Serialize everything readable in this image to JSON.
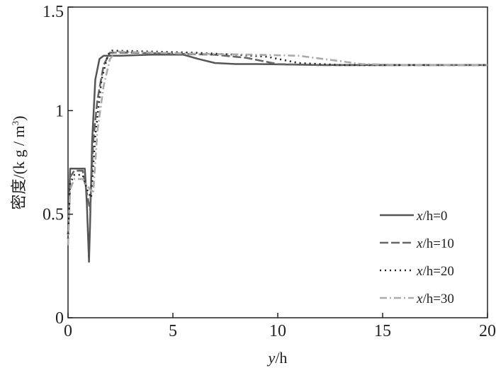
{
  "chart_data": {
    "type": "line",
    "title": "",
    "xlabel": "y/h",
    "ylabel": "密度/(kg/m³)",
    "xlim": [
      0,
      20
    ],
    "ylim": [
      0,
      1.5
    ],
    "xticks": [
      0,
      5,
      10,
      15,
      20
    ],
    "xtick_labels": [
      "0",
      "5",
      "10",
      "15",
      "20"
    ],
    "yticks": [
      0,
      0.5,
      1,
      1.5
    ],
    "ytick_labels": [
      "0",
      "0.5",
      "1",
      "1.5"
    ],
    "grid": false,
    "legend_position": "bottom-right",
    "series": [
      {
        "name": "x/h=0",
        "color": "#555555",
        "dash": "solid",
        "x": [
          0,
          0.1,
          0.3,
          0.8,
          0.9,
          1.0,
          1.05,
          1.15,
          1.3,
          1.5,
          1.7,
          2.5,
          4.0,
          5.5,
          6.2,
          7.0,
          8.0,
          9.0,
          12.0,
          15.0,
          20.0
        ],
        "y": [
          0.4,
          0.72,
          0.72,
          0.72,
          0.55,
          0.27,
          0.45,
          0.85,
          1.15,
          1.25,
          1.265,
          1.265,
          1.27,
          1.27,
          1.25,
          1.23,
          1.225,
          1.225,
          1.22,
          1.22,
          1.22
        ]
      },
      {
        "name": "x/h=10",
        "color": "#666666",
        "dash": "dash",
        "x": [
          0,
          0.1,
          0.3,
          0.7,
          0.9,
          1.05,
          1.2,
          1.4,
          1.7,
          2.0,
          3.0,
          5.0,
          7.0,
          8.5,
          10.0,
          12.0,
          15.0,
          20.0
        ],
        "y": [
          0.4,
          0.68,
          0.71,
          0.71,
          0.6,
          0.52,
          0.85,
          1.05,
          1.22,
          1.28,
          1.28,
          1.275,
          1.27,
          1.255,
          1.225,
          1.22,
          1.22,
          1.22
        ]
      },
      {
        "name": "x/h=20",
        "color": "#222222",
        "dash": "dot",
        "x": [
          0,
          0.1,
          0.3,
          0.7,
          0.9,
          1.1,
          1.3,
          1.6,
          1.9,
          2.1,
          4.0,
          6.0,
          8.0,
          9.5,
          11.0,
          13.0,
          15.0,
          20.0
        ],
        "y": [
          0.38,
          0.65,
          0.69,
          0.69,
          0.62,
          0.58,
          0.88,
          1.15,
          1.27,
          1.29,
          1.285,
          1.28,
          1.27,
          1.26,
          1.23,
          1.22,
          1.22,
          1.22
        ]
      },
      {
        "name": "x/h=30",
        "color": "#aaaaaa",
        "dash": "dashdot",
        "x": [
          0,
          0.1,
          0.3,
          0.7,
          0.9,
          1.2,
          1.4,
          1.7,
          2.0,
          2.3,
          4.0,
          6.0,
          9.0,
          11.0,
          12.5,
          14.0,
          16.0,
          20.0
        ],
        "y": [
          0.35,
          0.62,
          0.67,
          0.67,
          0.64,
          0.6,
          0.9,
          1.12,
          1.25,
          1.285,
          1.28,
          1.275,
          1.27,
          1.265,
          1.245,
          1.225,
          1.22,
          1.22
        ]
      }
    ],
    "legend_entries": [
      {
        "prefix": "x",
        "suffix": "/h=0"
      },
      {
        "prefix": "x",
        "suffix": "/h=10"
      },
      {
        "prefix": "x",
        "suffix": "/h=20"
      },
      {
        "prefix": "x",
        "suffix": "/h=30"
      }
    ],
    "axis_text": {
      "x_italic": "y",
      "x_rest": "/h",
      "y_main": "密度/(k g / m",
      "y_sup": "3",
      "y_close": ")"
    }
  }
}
